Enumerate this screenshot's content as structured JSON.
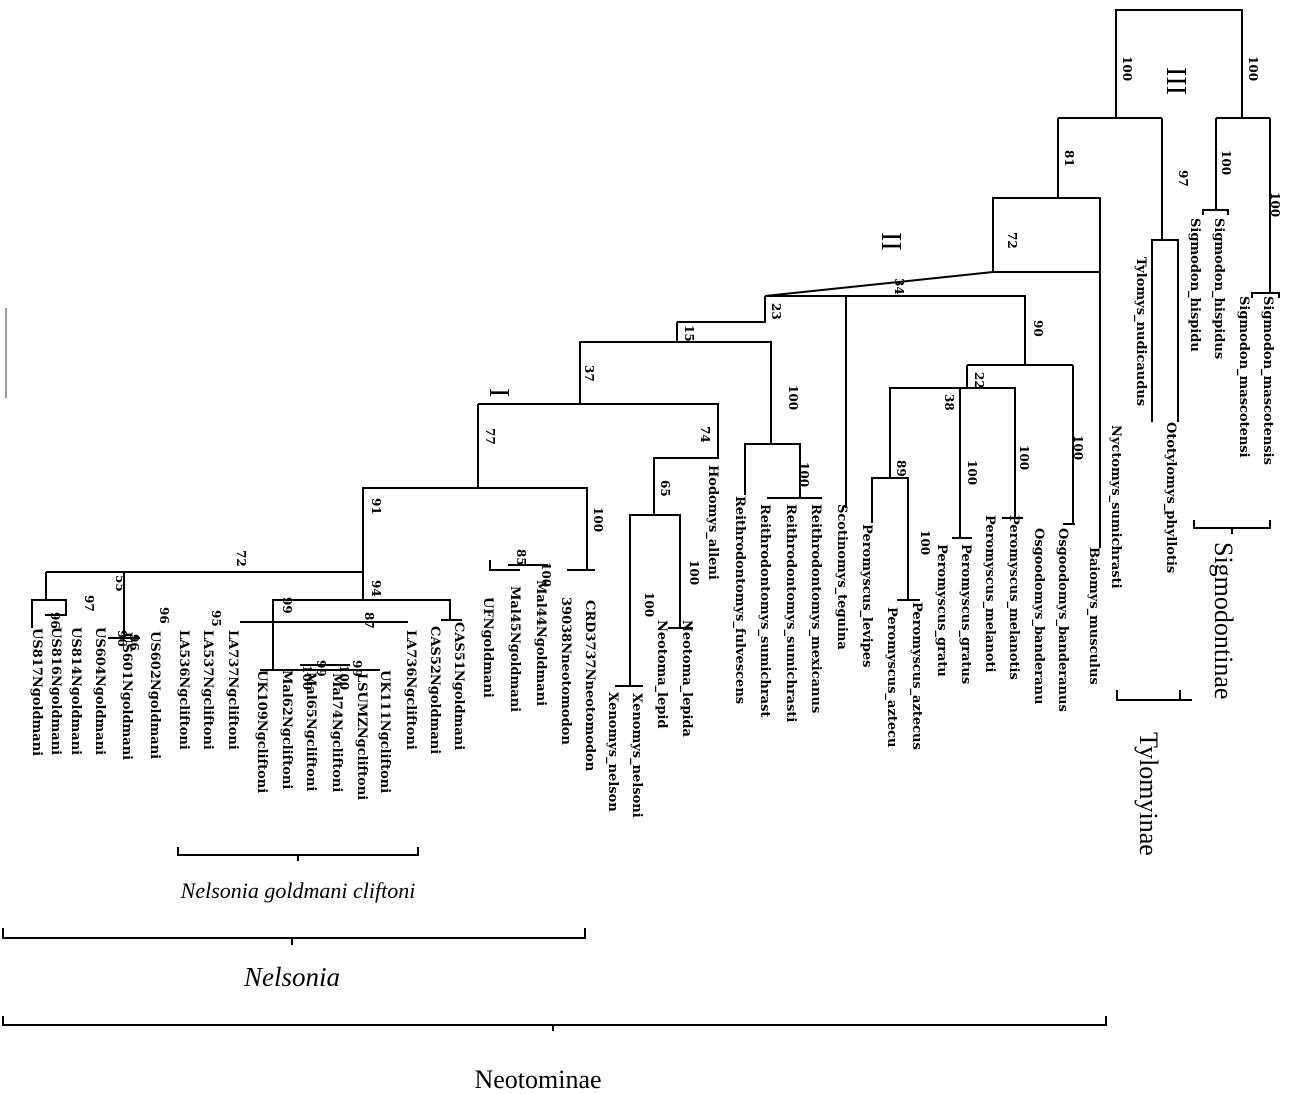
{
  "tips": [
    "US817Ngoldmani",
    "US816Ngoldmani",
    "US814Ngoldmani",
    "US604Ngoldmani",
    "US601Ngoldmani",
    "US602Ngoldmani",
    "LA536Ngcliftoni",
    "LA537Ngcliftoni",
    "LA737Ngcliftoni",
    "UK109Ngcliftoni",
    "Mal62Ngcliftoni",
    "Mal65Ngcliftoni",
    "Mal74Ngcliftoni",
    "LSUMZNgcliftoni",
    "UK111Ngcliftoni",
    "LA736Ngcliftoni",
    "CAS52Ngoldmani",
    "CAS51Ngoldmani",
    "UFNgoldmani",
    "Mal45Ngoldmani",
    "Mal44Ngoldmani",
    "39038Nneotomodon",
    "CRD3737Nneotomodon",
    "Xenomys_nelson",
    "Xenomys_nelsoni",
    "Neotoma_lepid",
    "Neotoma_lepida",
    "Hodomys_alleni",
    "Reithrodontomys_fulvescens",
    "Reithrodontomys_sumichrast",
    "Reithrodontomys_sumichrasti",
    "Reithrodontomys_mexicanus",
    "Scotinomys_teguina",
    "Peromyscus_levipes",
    "Peromyscus_aztecu",
    "Peromyscus_aztecus",
    "Peromyscus_gratu",
    "Peromyscus_gratus",
    "Peromyscus_melanoti",
    "Peromyscus_melanotis",
    "Osgoodomys_banderanu",
    "Osgoodomys_banderanus",
    "Baiomys_musculus",
    "Nyctomys_sumichrasti",
    "Tylomys_nudicaudus",
    "Ototylomys_phyllotis",
    "Sigmodon_hispidu",
    "Sigmodon_hispidus",
    "Sigmodon_mascotensi",
    "Sigmodon_mascotensis"
  ],
  "supports": [
    "100",
    "100",
    "81",
    "97",
    "100",
    "100",
    "72",
    "34",
    "90",
    "23",
    "15",
    "100",
    "37",
    "74",
    "65",
    "100",
    "100",
    "22",
    "38",
    "89",
    "100",
    "100",
    "100",
    "100",
    "77",
    "91",
    "100",
    "72",
    "94",
    "55",
    "97",
    "96",
    "96",
    "96",
    "96",
    "95",
    "99",
    "87",
    "99",
    "99",
    "85",
    "100",
    "100",
    "100",
    "100"
  ],
  "clade_labels": [
    "I",
    "II",
    "III"
  ],
  "groups": {
    "sigmodontinae": "Sigmodontinae",
    "tylomyinae": "Tylomyinae",
    "ngc": "Nelsonia goldmani cliftoni",
    "nelsonia": "Nelsonia",
    "neotominae": "Neotominae"
  }
}
